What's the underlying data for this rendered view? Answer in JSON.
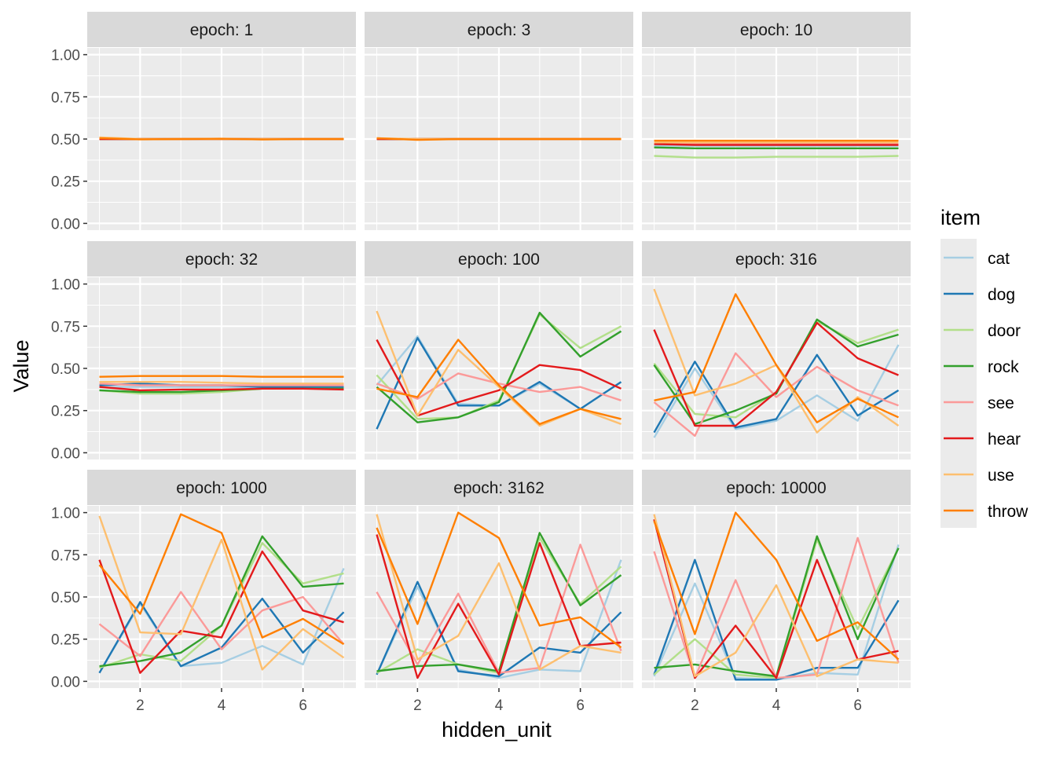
{
  "chart_data": {
    "type": "line",
    "xlabel": "hidden_unit",
    "ylabel": "Value",
    "xlim": [
      0.7,
      7.3
    ],
    "ylim": [
      -0.04,
      1.04
    ],
    "x_ticks": [
      2,
      4,
      6
    ],
    "x_tick_labels": [
      "2",
      "4",
      "6"
    ],
    "y_ticks": [
      0,
      0.25,
      0.5,
      0.75,
      1.0
    ],
    "y_tick_labels": [
      "0.00",
      "0.25",
      "0.50",
      "0.75",
      "1.00"
    ],
    "grid": true,
    "legend": {
      "title": "item",
      "position": "right",
      "items": [
        {
          "name": "cat",
          "color": "#A6CEE3"
        },
        {
          "name": "dog",
          "color": "#1F78B4"
        },
        {
          "name": "door",
          "color": "#B2DF8A"
        },
        {
          "name": "rock",
          "color": "#33A02C"
        },
        {
          "name": "see",
          "color": "#FB9A99"
        },
        {
          "name": "hear",
          "color": "#E31A1C"
        },
        {
          "name": "use",
          "color": "#FDBF6F"
        },
        {
          "name": "throw",
          "color": "#FF7F00"
        }
      ]
    },
    "x": [
      1,
      2,
      3,
      4,
      5,
      6,
      7
    ],
    "panels": [
      {
        "title": "epoch: 1",
        "series": [
          {
            "name": "cat",
            "values": [
              0.5,
              0.5,
              0.5,
              0.5,
              0.5,
              0.5,
              0.5
            ]
          },
          {
            "name": "dog",
            "values": [
              0.5,
              0.5,
              0.5,
              0.5,
              0.5,
              0.5,
              0.5
            ]
          },
          {
            "name": "door",
            "values": [
              0.5,
              0.5,
              0.5,
              0.5,
              0.5,
              0.5,
              0.5
            ]
          },
          {
            "name": "rock",
            "values": [
              0.5,
              0.5,
              0.5,
              0.5,
              0.5,
              0.5,
              0.5
            ]
          },
          {
            "name": "see",
            "values": [
              0.5,
              0.5,
              0.5,
              0.5,
              0.5,
              0.5,
              0.5
            ]
          },
          {
            "name": "hear",
            "values": [
              0.5,
              0.5,
              0.5,
              0.5,
              0.5,
              0.5,
              0.5
            ]
          },
          {
            "name": "use",
            "values": [
              0.51,
              0.5,
              0.5,
              0.5,
              0.5,
              0.5,
              0.5
            ]
          },
          {
            "name": "throw",
            "values": [
              0.505,
              0.498,
              0.5,
              0.502,
              0.497,
              0.5,
              0.5
            ]
          }
        ]
      },
      {
        "title": "epoch: 3",
        "series": [
          {
            "name": "cat",
            "values": [
              0.5,
              0.5,
              0.5,
              0.5,
              0.5,
              0.5,
              0.5
            ]
          },
          {
            "name": "dog",
            "values": [
              0.5,
              0.5,
              0.5,
              0.5,
              0.5,
              0.5,
              0.5
            ]
          },
          {
            "name": "door",
            "values": [
              0.5,
              0.5,
              0.5,
              0.5,
              0.5,
              0.5,
              0.5
            ]
          },
          {
            "name": "rock",
            "values": [
              0.5,
              0.5,
              0.5,
              0.5,
              0.5,
              0.5,
              0.5
            ]
          },
          {
            "name": "see",
            "values": [
              0.5,
              0.5,
              0.5,
              0.5,
              0.5,
              0.5,
              0.5
            ]
          },
          {
            "name": "hear",
            "values": [
              0.5,
              0.5,
              0.5,
              0.5,
              0.5,
              0.5,
              0.5
            ]
          },
          {
            "name": "use",
            "values": [
              0.505,
              0.5,
              0.5,
              0.5,
              0.5,
              0.5,
              0.5
            ]
          },
          {
            "name": "throw",
            "values": [
              0.505,
              0.495,
              0.5,
              0.5,
              0.5,
              0.5,
              0.5
            ]
          }
        ]
      },
      {
        "title": "epoch: 10",
        "series": [
          {
            "name": "cat",
            "values": [
              0.46,
              0.46,
              0.46,
              0.46,
              0.46,
              0.46,
              0.46
            ]
          },
          {
            "name": "dog",
            "values": [
              0.47,
              0.47,
              0.47,
              0.47,
              0.47,
              0.47,
              0.47
            ]
          },
          {
            "name": "door",
            "values": [
              0.4,
              0.39,
              0.39,
              0.395,
              0.395,
              0.395,
              0.4
            ]
          },
          {
            "name": "rock",
            "values": [
              0.45,
              0.445,
              0.445,
              0.445,
              0.445,
              0.445,
              0.445
            ]
          },
          {
            "name": "see",
            "values": [
              0.47,
              0.47,
              0.47,
              0.47,
              0.47,
              0.47,
              0.47
            ]
          },
          {
            "name": "hear",
            "values": [
              0.47,
              0.465,
              0.465,
              0.465,
              0.465,
              0.465,
              0.465
            ]
          },
          {
            "name": "use",
            "values": [
              0.48,
              0.48,
              0.48,
              0.48,
              0.48,
              0.48,
              0.48
            ]
          },
          {
            "name": "throw",
            "values": [
              0.49,
              0.49,
              0.49,
              0.49,
              0.49,
              0.49,
              0.49
            ]
          }
        ]
      },
      {
        "title": "epoch: 32",
        "series": [
          {
            "name": "cat",
            "values": [
              0.39,
              0.39,
              0.39,
              0.39,
              0.39,
              0.39,
              0.39
            ]
          },
          {
            "name": "dog",
            "values": [
              0.4,
              0.41,
              0.4,
              0.4,
              0.39,
              0.39,
              0.39
            ]
          },
          {
            "name": "door",
            "values": [
              0.37,
              0.35,
              0.35,
              0.36,
              0.38,
              0.38,
              0.38
            ]
          },
          {
            "name": "rock",
            "values": [
              0.37,
              0.36,
              0.36,
              0.37,
              0.38,
              0.38,
              0.38
            ]
          },
          {
            "name": "see",
            "values": [
              0.41,
              0.4,
              0.4,
              0.4,
              0.4,
              0.4,
              0.4
            ]
          },
          {
            "name": "hear",
            "values": [
              0.39,
              0.37,
              0.375,
              0.375,
              0.38,
              0.38,
              0.375
            ]
          },
          {
            "name": "use",
            "values": [
              0.42,
              0.42,
              0.42,
              0.415,
              0.41,
              0.41,
              0.41
            ]
          },
          {
            "name": "throw",
            "values": [
              0.45,
              0.455,
              0.455,
              0.455,
              0.45,
              0.45,
              0.45
            ]
          }
        ]
      },
      {
        "title": "epoch: 100",
        "series": [
          {
            "name": "cat",
            "values": [
              0.4,
              0.69,
              0.29,
              0.28,
              0.41,
              0.26,
              0.42
            ]
          },
          {
            "name": "dog",
            "values": [
              0.14,
              0.68,
              0.28,
              0.28,
              0.42,
              0.26,
              0.42
            ]
          },
          {
            "name": "door",
            "values": [
              0.46,
              0.2,
              0.21,
              0.31,
              0.82,
              0.62,
              0.75
            ]
          },
          {
            "name": "rock",
            "values": [
              0.39,
              0.18,
              0.21,
              0.3,
              0.83,
              0.57,
              0.72
            ]
          },
          {
            "name": "see",
            "values": [
              0.41,
              0.32,
              0.47,
              0.41,
              0.36,
              0.39,
              0.31
            ]
          },
          {
            "name": "hear",
            "values": [
              0.67,
              0.22,
              0.3,
              0.37,
              0.52,
              0.49,
              0.38
            ]
          },
          {
            "name": "use",
            "values": [
              0.84,
              0.22,
              0.61,
              0.39,
              0.16,
              0.26,
              0.17
            ]
          },
          {
            "name": "throw",
            "values": [
              0.38,
              0.33,
              0.67,
              0.4,
              0.17,
              0.26,
              0.2
            ]
          }
        ]
      },
      {
        "title": "epoch: 316",
        "series": [
          {
            "name": "cat",
            "values": [
              0.09,
              0.5,
              0.14,
              0.19,
              0.34,
              0.19,
              0.64
            ]
          },
          {
            "name": "dog",
            "values": [
              0.12,
              0.54,
              0.15,
              0.2,
              0.58,
              0.22,
              0.37
            ]
          },
          {
            "name": "door",
            "values": [
              0.53,
              0.23,
              0.21,
              0.36,
              0.78,
              0.65,
              0.73
            ]
          },
          {
            "name": "rock",
            "values": [
              0.52,
              0.17,
              0.25,
              0.35,
              0.79,
              0.63,
              0.7
            ]
          },
          {
            "name": "see",
            "values": [
              0.3,
              0.1,
              0.59,
              0.33,
              0.51,
              0.37,
              0.28
            ]
          },
          {
            "name": "hear",
            "values": [
              0.73,
              0.16,
              0.16,
              0.36,
              0.77,
              0.56,
              0.46
            ]
          },
          {
            "name": "use",
            "values": [
              0.97,
              0.34,
              0.41,
              0.52,
              0.12,
              0.33,
              0.16
            ]
          },
          {
            "name": "throw",
            "values": [
              0.31,
              0.36,
              0.94,
              0.52,
              0.18,
              0.32,
              0.21
            ]
          }
        ]
      },
      {
        "title": "epoch: 1000",
        "series": [
          {
            "name": "cat",
            "values": [
              0.05,
              0.46,
              0.09,
              0.11,
              0.21,
              0.1,
              0.67
            ]
          },
          {
            "name": "dog",
            "values": [
              0.05,
              0.47,
              0.09,
              0.2,
              0.49,
              0.17,
              0.41
            ]
          },
          {
            "name": "door",
            "values": [
              0.08,
              0.16,
              0.12,
              0.33,
              0.82,
              0.58,
              0.64
            ]
          },
          {
            "name": "rock",
            "values": [
              0.09,
              0.12,
              0.17,
              0.33,
              0.86,
              0.56,
              0.58
            ]
          },
          {
            "name": "see",
            "values": [
              0.34,
              0.15,
              0.53,
              0.19,
              0.42,
              0.5,
              0.22
            ]
          },
          {
            "name": "hear",
            "values": [
              0.72,
              0.05,
              0.3,
              0.26,
              0.77,
              0.42,
              0.35
            ]
          },
          {
            "name": "use",
            "values": [
              0.98,
              0.29,
              0.28,
              0.84,
              0.07,
              0.31,
              0.14
            ]
          },
          {
            "name": "throw",
            "values": [
              0.69,
              0.4,
              0.99,
              0.88,
              0.26,
              0.37,
              0.22
            ]
          }
        ]
      },
      {
        "title": "epoch: 3162",
        "series": [
          {
            "name": "cat",
            "values": [
              0.04,
              0.56,
              0.07,
              0.02,
              0.07,
              0.06,
              0.72
            ]
          },
          {
            "name": "dog",
            "values": [
              0.04,
              0.59,
              0.06,
              0.03,
              0.2,
              0.17,
              0.41
            ]
          },
          {
            "name": "door",
            "values": [
              0.05,
              0.19,
              0.1,
              0.05,
              0.85,
              0.46,
              0.68
            ]
          },
          {
            "name": "rock",
            "values": [
              0.06,
              0.09,
              0.1,
              0.06,
              0.88,
              0.45,
              0.63
            ]
          },
          {
            "name": "see",
            "values": [
              0.53,
              0.1,
              0.52,
              0.05,
              0.08,
              0.81,
              0.18
            ]
          },
          {
            "name": "hear",
            "values": [
              0.87,
              0.02,
              0.46,
              0.04,
              0.82,
              0.21,
              0.23
            ]
          },
          {
            "name": "use",
            "values": [
              0.99,
              0.13,
              0.27,
              0.7,
              0.07,
              0.21,
              0.17
            ]
          },
          {
            "name": "throw",
            "values": [
              0.91,
              0.34,
              1.0,
              0.85,
              0.33,
              0.38,
              0.2
            ]
          }
        ]
      },
      {
        "title": "epoch: 10000",
        "series": [
          {
            "name": "cat",
            "values": [
              0.03,
              0.58,
              0.02,
              0.01,
              0.05,
              0.04,
              0.81
            ]
          },
          {
            "name": "dog",
            "values": [
              0.04,
              0.72,
              0.01,
              0.01,
              0.08,
              0.08,
              0.48
            ]
          },
          {
            "name": "door",
            "values": [
              0.04,
              0.25,
              0.04,
              0.02,
              0.84,
              0.31,
              0.79
            ]
          },
          {
            "name": "rock",
            "values": [
              0.08,
              0.1,
              0.06,
              0.03,
              0.86,
              0.25,
              0.79
            ]
          },
          {
            "name": "see",
            "values": [
              0.77,
              0.02,
              0.6,
              0.02,
              0.04,
              0.85,
              0.11
            ]
          },
          {
            "name": "hear",
            "values": [
              0.96,
              0.02,
              0.33,
              0.02,
              0.72,
              0.13,
              0.18
            ]
          },
          {
            "name": "use",
            "values": [
              0.99,
              0.03,
              0.17,
              0.57,
              0.03,
              0.13,
              0.11
            ]
          },
          {
            "name": "throw",
            "values": [
              0.95,
              0.28,
              1.0,
              0.72,
              0.24,
              0.35,
              0.13
            ]
          }
        ]
      }
    ]
  }
}
